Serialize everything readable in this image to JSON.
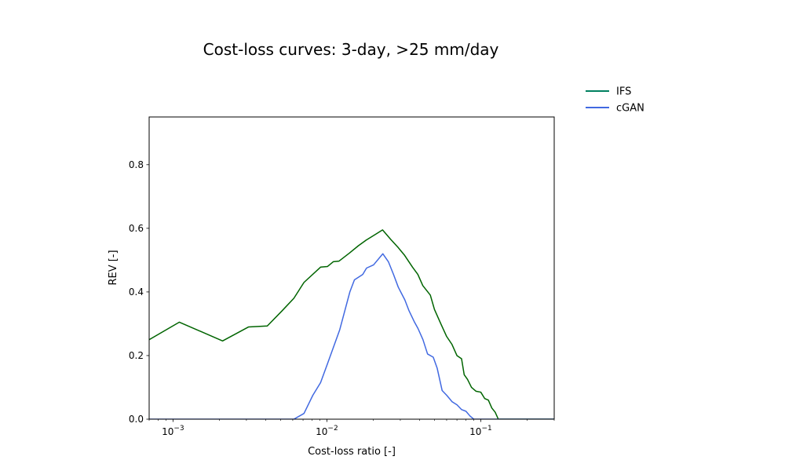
{
  "chart_data": {
    "type": "line",
    "title": "Cost-loss curves: 3-day, >25 mm/day",
    "xlabel": "Cost-loss ratio [-]",
    "ylabel": "REV [-]",
    "xscale": "log",
    "xlim": [
      0.0007,
      0.3
    ],
    "ylim": [
      0,
      0.95
    ],
    "x_major_ticks": [
      0.001,
      0.01,
      0.1
    ],
    "x_tick_labels": [
      {
        "base": "10",
        "exp": "−3"
      },
      {
        "base": "10",
        "exp": "−2"
      },
      {
        "base": "10",
        "exp": "−1"
      }
    ],
    "y_ticks": [
      0.0,
      0.2,
      0.4,
      0.6,
      0.8
    ],
    "y_tick_labels": [
      "0.0",
      "0.2",
      "0.4",
      "0.6",
      "0.8"
    ],
    "grid": false,
    "legend_position": "upper-right-outside",
    "series": [
      {
        "name": "IFS",
        "legend_color": "#008060",
        "color": "#006400",
        "points": [
          [
            0.0007,
            0.25
          ],
          [
            0.0011,
            0.305
          ],
          [
            0.0021,
            0.246
          ],
          [
            0.0031,
            0.29
          ],
          [
            0.0041,
            0.293
          ],
          [
            0.0051,
            0.34
          ],
          [
            0.0061,
            0.38
          ],
          [
            0.0071,
            0.43
          ],
          [
            0.0091,
            0.478
          ],
          [
            0.0101,
            0.48
          ],
          [
            0.011,
            0.495
          ],
          [
            0.012,
            0.497
          ],
          [
            0.014,
            0.522
          ],
          [
            0.016,
            0.545
          ],
          [
            0.018,
            0.563
          ],
          [
            0.021,
            0.583
          ],
          [
            0.023,
            0.595
          ],
          [
            0.026,
            0.565
          ],
          [
            0.029,
            0.54
          ],
          [
            0.032,
            0.515
          ],
          [
            0.036,
            0.478
          ],
          [
            0.039,
            0.455
          ],
          [
            0.042,
            0.42
          ],
          [
            0.047,
            0.39
          ],
          [
            0.05,
            0.345
          ],
          [
            0.055,
            0.3
          ],
          [
            0.06,
            0.26
          ],
          [
            0.065,
            0.235
          ],
          [
            0.07,
            0.2
          ],
          [
            0.075,
            0.19
          ],
          [
            0.078,
            0.14
          ],
          [
            0.082,
            0.125
          ],
          [
            0.087,
            0.1
          ],
          [
            0.093,
            0.088
          ],
          [
            0.1,
            0.085
          ],
          [
            0.106,
            0.065
          ],
          [
            0.112,
            0.06
          ],
          [
            0.118,
            0.035
          ],
          [
            0.124,
            0.022
          ],
          [
            0.13,
            0.0
          ],
          [
            0.3,
            0.0
          ]
        ]
      },
      {
        "name": "cGAN",
        "legend_color": "#4169e1",
        "color": "#4169e1",
        "points": [
          [
            0.0007,
            0.0
          ],
          [
            0.0061,
            0.0
          ],
          [
            0.0071,
            0.018
          ],
          [
            0.0081,
            0.075
          ],
          [
            0.0091,
            0.115
          ],
          [
            0.0101,
            0.175
          ],
          [
            0.0121,
            0.28
          ],
          [
            0.0141,
            0.4
          ],
          [
            0.0151,
            0.438
          ],
          [
            0.0171,
            0.455
          ],
          [
            0.0181,
            0.475
          ],
          [
            0.0201,
            0.485
          ],
          [
            0.0231,
            0.52
          ],
          [
            0.0251,
            0.495
          ],
          [
            0.0271,
            0.455
          ],
          [
            0.0291,
            0.415
          ],
          [
            0.0321,
            0.375
          ],
          [
            0.0341,
            0.342
          ],
          [
            0.0371,
            0.305
          ],
          [
            0.0391,
            0.285
          ],
          [
            0.0421,
            0.25
          ],
          [
            0.0451,
            0.205
          ],
          [
            0.0491,
            0.195
          ],
          [
            0.0521,
            0.16
          ],
          [
            0.0561,
            0.09
          ],
          [
            0.0601,
            0.075
          ],
          [
            0.0651,
            0.055
          ],
          [
            0.0701,
            0.045
          ],
          [
            0.0751,
            0.03
          ],
          [
            0.0801,
            0.025
          ],
          [
            0.0851,
            0.01
          ],
          [
            0.0901,
            0.0
          ],
          [
            0.3,
            0.0
          ]
        ]
      }
    ]
  }
}
